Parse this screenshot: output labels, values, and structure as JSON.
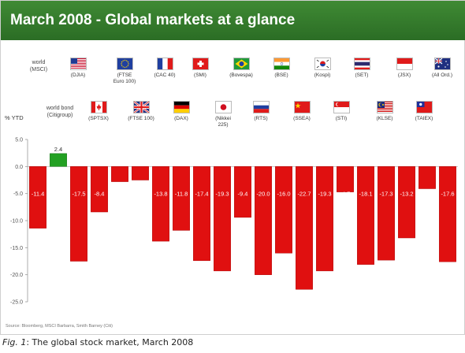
{
  "header": {
    "title": "March 2008 - Global markets at a glance"
  },
  "legend": {
    "row1_label": "world\n(MSCI)",
    "row2_label": "world bond\n(Citigroup)",
    "row1": [
      {
        "label": "(DJIA)",
        "icon": "us-flag-icon"
      },
      {
        "label": "(FTSE\nEuro 100)",
        "icon": "eu-flag-icon"
      },
      {
        "label": "(CAC 40)",
        "icon": "france-flag-icon"
      },
      {
        "label": "(SMI)",
        "icon": "switzerland-flag-icon"
      },
      {
        "label": "(Bovespa)",
        "icon": "brazil-flag-icon"
      },
      {
        "label": "(BSE)",
        "icon": "india-flag-icon"
      },
      {
        "label": "(Kospi)",
        "icon": "korea-flag-icon"
      },
      {
        "label": "(SET)",
        "icon": "thailand-flag-icon"
      },
      {
        "label": "(JSX)",
        "icon": "indonesia-flag-icon"
      },
      {
        "label": "(All Ord.)",
        "icon": "australia-flag-icon"
      }
    ],
    "row2": [
      {
        "label": "(SPTSX)",
        "icon": "canada-flag-icon"
      },
      {
        "label": "(FTSE 100)",
        "icon": "uk-flag-icon"
      },
      {
        "label": "(DAX)",
        "icon": "germany-flag-icon"
      },
      {
        "label": "(Nikkei\n225)",
        "icon": "japan-flag-icon"
      },
      {
        "label": "(RTS)",
        "icon": "russia-flag-icon"
      },
      {
        "label": "(SSEA)",
        "icon": "china-flag-icon"
      },
      {
        "label": "(STI)",
        "icon": "singapore-flag-icon"
      },
      {
        "label": "(KLSE)",
        "icon": "malaysia-flag-icon"
      },
      {
        "label": "(TAIEX)",
        "icon": "taiwan-flag-icon"
      }
    ]
  },
  "chart_data": {
    "type": "bar",
    "ylabel": "% YTD",
    "ylim": [
      -25,
      5
    ],
    "yticks": [
      "5.0",
      "0.0",
      "-5.0",
      "-10.0",
      "-15.0",
      "-20.0",
      "-25.0"
    ],
    "grid": false,
    "values": [
      -11.4,
      2.4,
      -17.5,
      -8.4,
      -2.8,
      -2.5,
      -13.8,
      -11.8,
      -17.4,
      -19.3,
      -9.4,
      -20.0,
      -16.0,
      -22.7,
      -19.3,
      -4.7,
      -18.1,
      -17.3,
      -13.2,
      -4.1,
      -17.6
    ],
    "labels": [
      "-11.4",
      "2.4",
      "-17.5",
      "-8.4",
      "-2.8",
      "-2.5",
      "-13.8",
      "-11.8",
      "-17.4",
      "-19.3",
      "-9.4",
      "-20.0",
      "-16.0",
      "-22.7",
      "-19.3",
      "-4.7",
      "-18.1",
      "-17.3",
      "-13.2",
      "-4.1",
      "-17.6"
    ],
    "colors": {
      "negative": "#e01010",
      "positive": "#22a022"
    }
  },
  "source": "Source: Bloomberg, MSCI Barbarra, Smith Barney (Citi)",
  "caption": {
    "prefix": "Fig. 1",
    "text": ": The global stock market, March 2008"
  }
}
